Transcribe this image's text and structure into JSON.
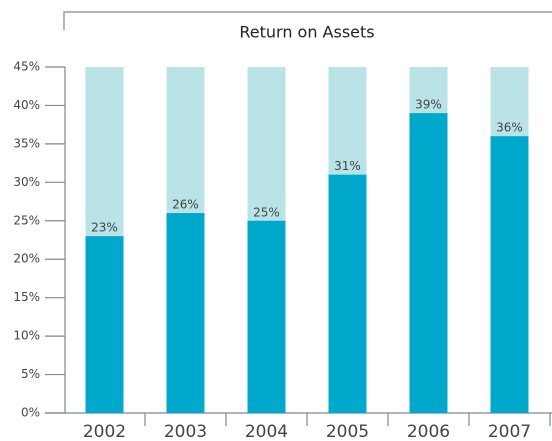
{
  "chart_data": {
    "type": "bar",
    "title": "Return on Assets",
    "categories": [
      "2002",
      "2003",
      "2004",
      "2005",
      "2006",
      "2007"
    ],
    "values": [
      23,
      26,
      25,
      31,
      39,
      36
    ],
    "value_labels": [
      "23%",
      "26%",
      "25%",
      "31%",
      "39%",
      "36%"
    ],
    "color": "#00a8cc",
    "background_color": "#b9e3e6",
    "ylim": [
      0,
      45
    ],
    "yticks": [
      {
        "value": 0,
        "label": "0%"
      },
      {
        "value": 5,
        "label": "5%"
      },
      {
        "value": 10,
        "label": "10%"
      },
      {
        "value": 15,
        "label": "15%"
      },
      {
        "value": 20,
        "label": "20%"
      },
      {
        "value": 25,
        "label": "25%"
      },
      {
        "value": 30,
        "label": "30%"
      },
      {
        "value": 35,
        "label": "35%"
      },
      {
        "value": 40,
        "label": "40%"
      },
      {
        "value": 45,
        "label": "45%"
      }
    ]
  }
}
